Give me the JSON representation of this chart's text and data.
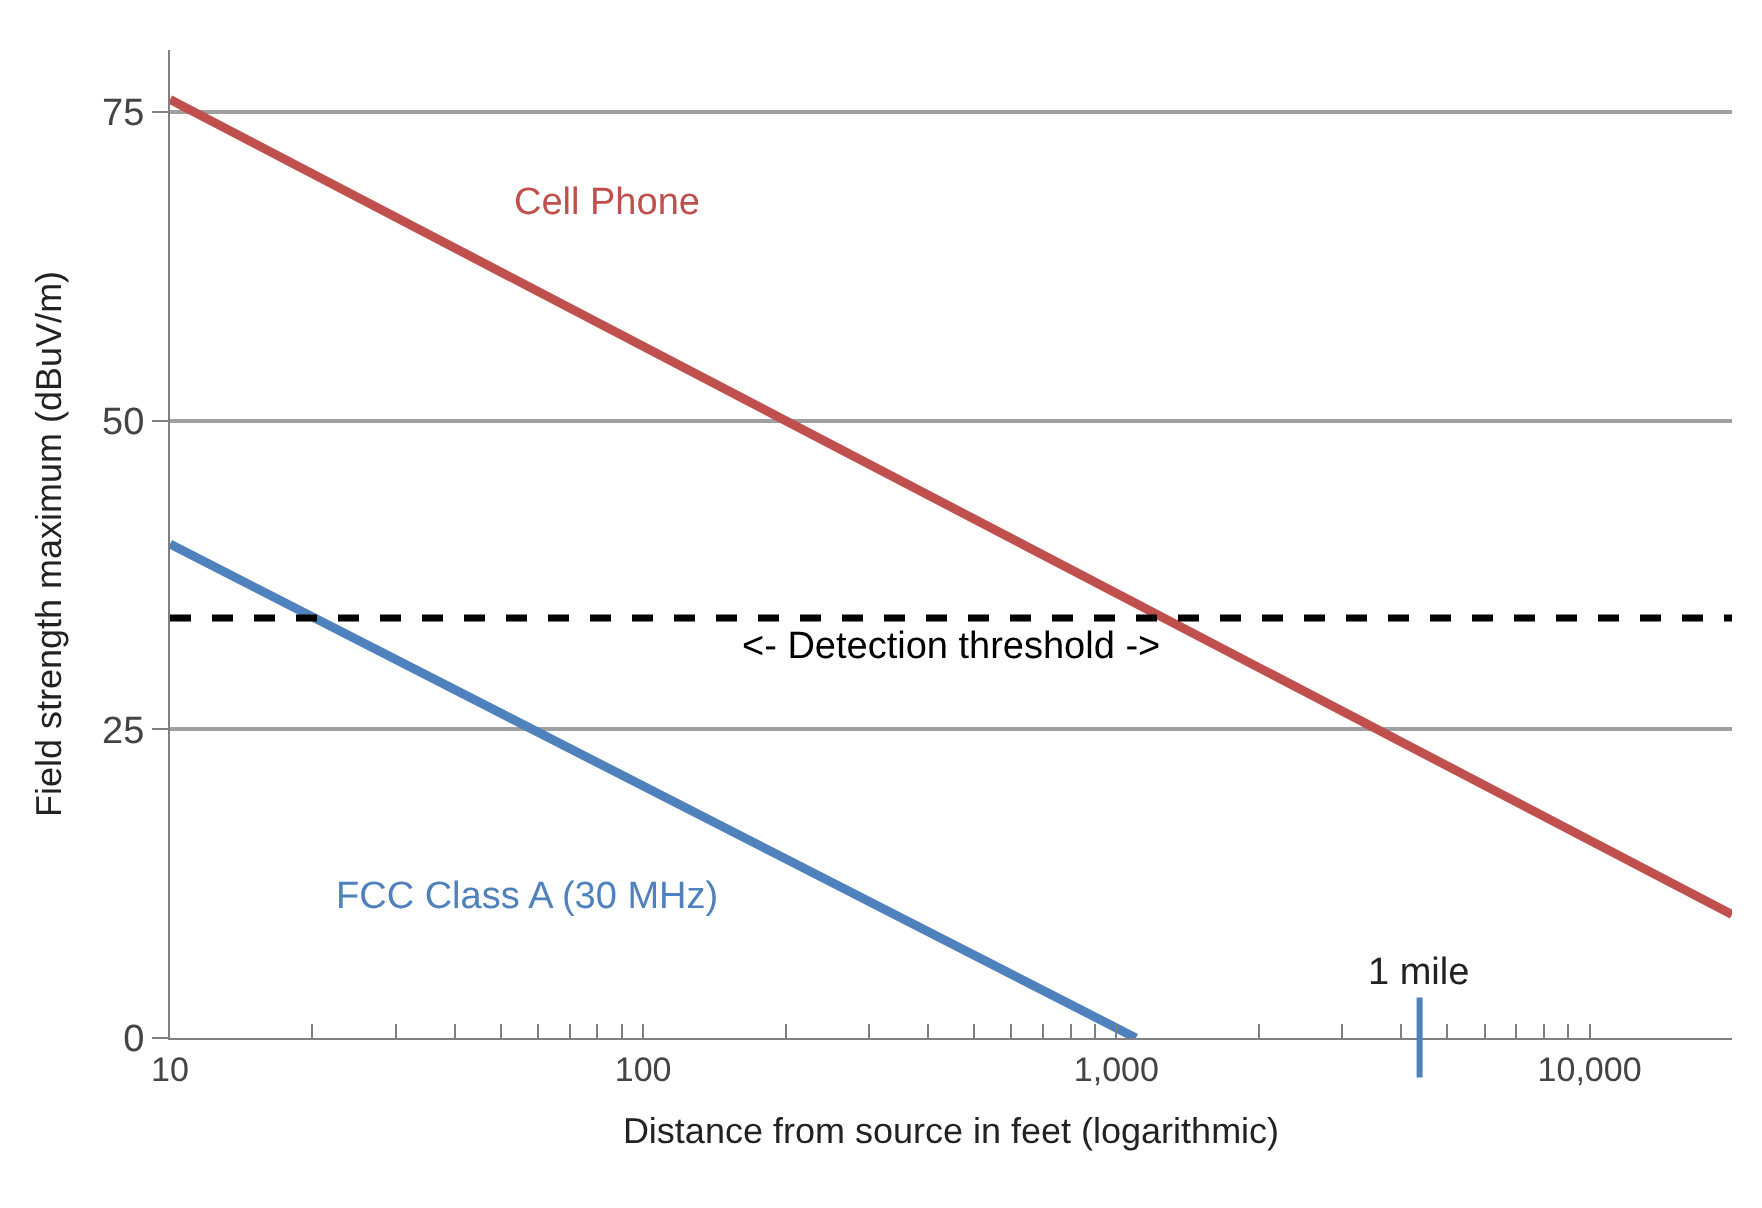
{
  "chart_data": {
    "type": "line",
    "xlabel": "Distance from source in feet (logarithmic)",
    "ylabel": "Field strength maximum (dBuV/m)",
    "log": "x",
    "xlim": [
      10,
      20000
    ],
    "xticks": [
      {
        "value": 10,
        "label": "10"
      },
      {
        "value": 20,
        "label": null
      },
      {
        "value": 30,
        "label": null
      },
      {
        "value": 40,
        "label": null
      },
      {
        "value": 50,
        "label": null
      },
      {
        "value": 60,
        "label": null
      },
      {
        "value": 70,
        "label": null
      },
      {
        "value": 80,
        "label": null
      },
      {
        "value": 90,
        "label": null
      },
      {
        "value": 100,
        "label": "100"
      },
      {
        "value": 200,
        "label": null
      },
      {
        "value": 300,
        "label": null
      },
      {
        "value": 400,
        "label": null
      },
      {
        "value": 500,
        "label": null
      },
      {
        "value": 600,
        "label": null
      },
      {
        "value": 700,
        "label": null
      },
      {
        "value": 800,
        "label": null
      },
      {
        "value": 900,
        "label": null
      },
      {
        "value": 1000,
        "label": "1,000"
      },
      {
        "value": 2000,
        "label": null
      },
      {
        "value": 3000,
        "label": null
      },
      {
        "value": 4000,
        "label": null
      },
      {
        "value": 5000,
        "label": null
      },
      {
        "value": 6000,
        "label": null
      },
      {
        "value": 7000,
        "label": null
      },
      {
        "value": 8000,
        "label": null
      },
      {
        "value": 9000,
        "label": null
      },
      {
        "value": 10000,
        "label": "10,000"
      }
    ],
    "ylim": [
      0,
      80
    ],
    "yticks": [
      0,
      25,
      50,
      75
    ],
    "grid": "y",
    "legend": false,
    "series": [
      {
        "name": "Cell Phone",
        "color": "#c0504d",
        "x": [
          10,
          20000
        ],
        "values": [
          76,
          10
        ]
      },
      {
        "name": "FCC Class A (30 MHz)",
        "color": "#4f81bd",
        "x": [
          10,
          1100
        ],
        "values": [
          40,
          0
        ]
      }
    ],
    "ref_lines": [
      {
        "axis": "y",
        "value": 34,
        "label": "<- Detection threshold ->",
        "color": "#000000",
        "line_style": "dashed"
      }
    ],
    "annotations": [
      "1 mile"
    ]
  }
}
